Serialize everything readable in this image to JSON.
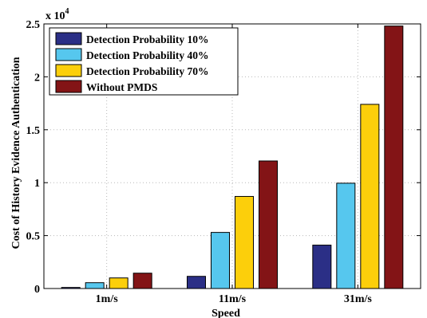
{
  "chart_data": {
    "type": "bar",
    "categories": [
      "1m/s",
      "11m/s",
      "31m/s"
    ],
    "series": [
      {
        "name": "Detection Probability 10%",
        "values": [
          100,
          1150,
          4100
        ],
        "color": "#2b2f86"
      },
      {
        "name": "Detection Probability 40%",
        "values": [
          550,
          5300,
          9950
        ],
        "color": "#56c7ee"
      },
      {
        "name": "Detection Probability 70%",
        "values": [
          1000,
          8700,
          17400
        ],
        "color": "#fccf0b"
      },
      {
        "name": "Without PMDS",
        "values": [
          1450,
          12050,
          24800
        ],
        "color": "#831416"
      }
    ],
    "title": "",
    "xlabel": "Speed",
    "ylabel": "Cost of History Evidence Authentication",
    "ylim": [
      0,
      25000
    ],
    "yticks": [
      0,
      5000,
      10000,
      15000,
      20000,
      25000
    ],
    "ytick_labels": [
      "0",
      "0.5",
      "1",
      "1.5",
      "2",
      "2.5"
    ],
    "y_multiplier_base": "x 10",
    "y_multiplier_exp": "4",
    "grid": true,
    "legend_position": "top-left"
  }
}
